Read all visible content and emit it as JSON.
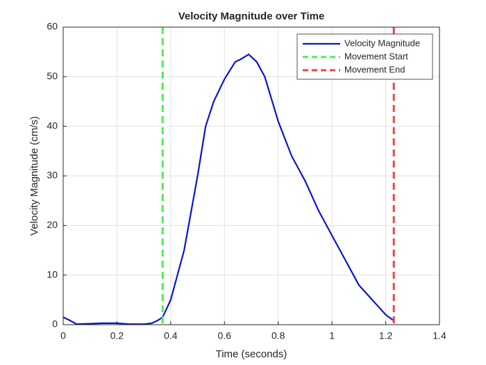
{
  "chart_data": {
    "type": "line",
    "title": "Velocity Magnitude over Time",
    "xlabel": "Time (seconds)",
    "ylabel": "Velocity Magnitude (cm/s)",
    "x": [
      0,
      0.02,
      0.05,
      0.1,
      0.15,
      0.2,
      0.25,
      0.3,
      0.33,
      0.35,
      0.37,
      0.4,
      0.45,
      0.5,
      0.53,
      0.56,
      0.6,
      0.64,
      0.66,
      0.69,
      0.72,
      0.75,
      0.8,
      0.85,
      0.9,
      0.95,
      1.0,
      1.05,
      1.1,
      1.15,
      1.2,
      1.23
    ],
    "series": [
      {
        "name": "Velocity Magnitude",
        "color": "#0a14d2",
        "values": [
          1.5,
          1.0,
          0.1,
          0.2,
          0.3,
          0.3,
          0.1,
          0.1,
          0.3,
          0.8,
          1.5,
          5,
          15,
          30,
          40,
          45,
          49.5,
          53,
          53.5,
          54.5,
          53,
          50,
          41,
          34,
          29,
          23,
          18,
          13,
          8,
          5,
          2,
          0.8
        ]
      }
    ],
    "vlines": [
      {
        "name": "Movement Start",
        "color": "#4def4d",
        "x": 0.37
      },
      {
        "name": "Movement End",
        "color": "#ee4444",
        "x": 1.23
      }
    ],
    "xlim": [
      0,
      1.4
    ],
    "xticks": [
      0,
      0.2,
      0.4,
      0.6,
      0.8,
      1,
      1.2,
      1.4
    ],
    "ylim": [
      0,
      60
    ],
    "yticks": [
      0,
      10,
      20,
      30,
      40,
      50,
      60
    ],
    "grid": true,
    "legend": "northeast"
  }
}
